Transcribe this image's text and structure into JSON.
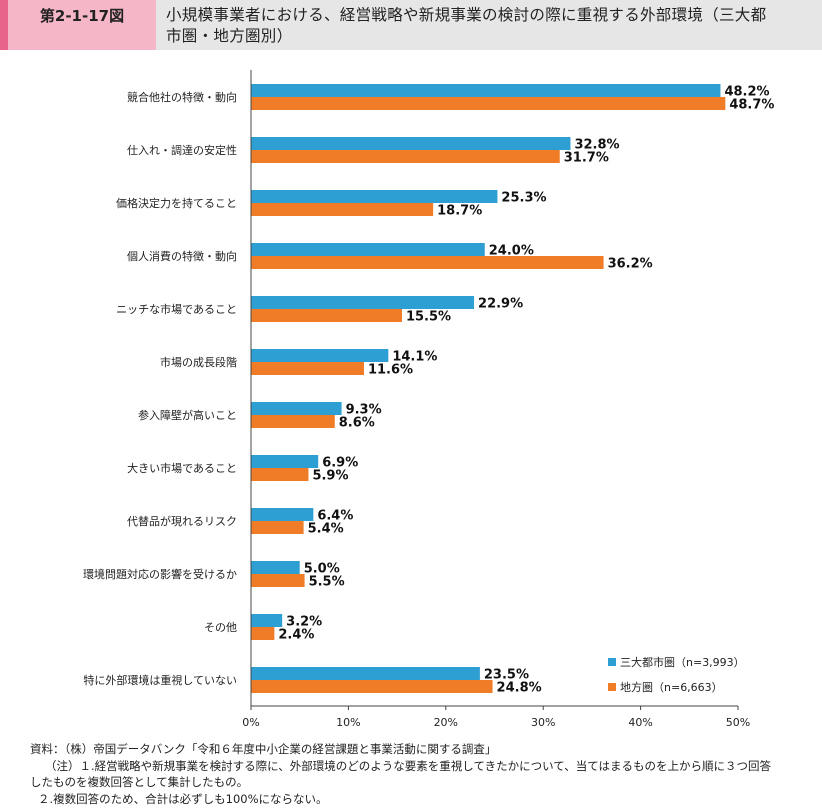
{
  "header": {
    "figure_number": "第2-1-17図",
    "title_line1": "小規模事業者における、経営戦略や新規事業の検討の際に重視する外部環境（三大都",
    "title_line2": "市圏・地方圏別）"
  },
  "colors": {
    "series1": "#2e9fd3",
    "series2": "#f07c28",
    "axis": "#444444",
    "header_bg": "#e6e6e6",
    "tag_bg": "#f5b7c8",
    "accent": "#e8648a"
  },
  "chart_data": {
    "type": "bar",
    "orientation": "horizontal",
    "categories": [
      "競合他社の特徴・動向",
      "仕入れ・調達の安定性",
      "価格決定力を持てること",
      "個人消費の特徴・動向",
      "ニッチな市場であること",
      "市場の成長段階",
      "参入障壁が高いこと",
      "大きい市場であること",
      "代替品が現れるリスク",
      "環境問題対応の影響を受けるか",
      "その他",
      "特に外部環境は重視していない"
    ],
    "series": [
      {
        "name": "三大都市圏（n=3,993）",
        "values": [
          48.2,
          32.8,
          25.3,
          24.0,
          22.9,
          14.1,
          9.3,
          6.9,
          6.4,
          5.0,
          3.2,
          23.5
        ]
      },
      {
        "name": "地方圏（n=6,663）",
        "values": [
          48.7,
          31.7,
          18.7,
          36.2,
          15.5,
          11.6,
          8.6,
          5.9,
          5.4,
          5.5,
          2.4,
          24.8
        ]
      }
    ],
    "xlim": [
      0,
      50
    ],
    "x_ticks": [
      0,
      10,
      20,
      30,
      40,
      50
    ],
    "tick_suffix": "%",
    "value_suffix": "%",
    "grid": false,
    "legend_position": "bottom-right"
  },
  "notes": {
    "source": "資料：（株）帝国データバンク「令和６年度中小企業の経営課題と事業活動に関する調査」",
    "note1_line1": "（注）１.経営戦略や新規事業を検討する際に、外部環境のどのような要素を重視してきたかについて、当てはまるものを上から順に３つ回答",
    "note1_line2": "したものを複数回答として集計したもの。",
    "note2": "２.複数回答のため、合計は必ずしも100%にならない。"
  }
}
